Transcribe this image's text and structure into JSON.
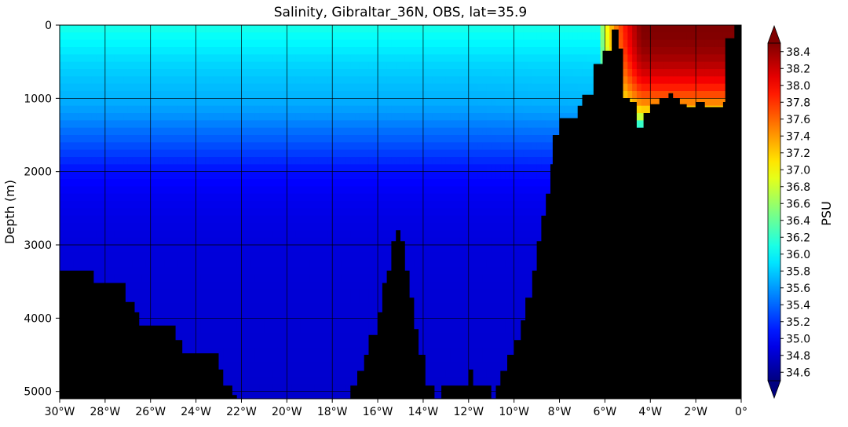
{
  "chart_data": {
    "type": "heatmap",
    "title": "Salinity, Gibraltar_36N, OBS, lat=35.9",
    "ylabel": "Depth (m)",
    "xlabel": "",
    "colorbar_label": "PSU",
    "xlim": [
      -30,
      0
    ],
    "ylim": [
      5100,
      0
    ],
    "y_inverted": true,
    "grid": true,
    "x_ticks": [
      {
        "value": -30,
        "label": "30°W"
      },
      {
        "value": -28,
        "label": "28°W"
      },
      {
        "value": -26,
        "label": "26°W"
      },
      {
        "value": -24,
        "label": "24°W"
      },
      {
        "value": -22,
        "label": "22°W"
      },
      {
        "value": -20,
        "label": "20°W"
      },
      {
        "value": -18,
        "label": "18°W"
      },
      {
        "value": -16,
        "label": "16°W"
      },
      {
        "value": -14,
        "label": "14°W"
      },
      {
        "value": -12,
        "label": "12°W"
      },
      {
        "value": -10,
        "label": "10°W"
      },
      {
        "value": -8,
        "label": "8°W"
      },
      {
        "value": -6,
        "label": "6°W"
      },
      {
        "value": -4,
        "label": "4°W"
      },
      {
        "value": -2,
        "label": "2°W"
      },
      {
        "value": 0,
        "label": "0°"
      }
    ],
    "y_ticks": [
      {
        "value": 0,
        "label": "0"
      },
      {
        "value": 1000,
        "label": "1000"
      },
      {
        "value": 2000,
        "label": "2000"
      },
      {
        "value": 3000,
        "label": "3000"
      },
      {
        "value": 4000,
        "label": "4000"
      },
      {
        "value": 5000,
        "label": "5000"
      }
    ],
    "colorbar": {
      "min": 34.5,
      "max": 38.5,
      "extend": "both",
      "ticks": [
        34.6,
        34.8,
        35.0,
        35.2,
        35.4,
        35.6,
        35.8,
        36.0,
        36.2,
        36.4,
        36.6,
        36.8,
        37.0,
        37.2,
        37.4,
        37.6,
        37.8,
        38.0,
        38.2,
        38.4
      ],
      "tick_labels": [
        "34.6",
        "34.8",
        "35.0",
        "35.2",
        "35.4",
        "35.6",
        "35.8",
        "36.0",
        "36.2",
        "36.4",
        "36.6",
        "36.8",
        "37.0",
        "37.2",
        "37.4",
        "37.6",
        "37.8",
        "38.0",
        "38.2",
        "38.4"
      ],
      "colormap": "jet"
    },
    "salinity_profile_by_depth": {
      "depth": [
        0,
        200,
        500,
        800,
        1000,
        1200,
        1500,
        1800,
        2000,
        2300,
        2600,
        3000,
        3500,
        4000,
        4500,
        5100
      ],
      "salinity": [
        36.1,
        36.0,
        35.85,
        35.75,
        35.7,
        35.6,
        35.4,
        35.2,
        35.05,
        34.95,
        34.9,
        34.86,
        34.84,
        34.83,
        34.82,
        34.8
      ]
    },
    "mediterranean_outflow": {
      "lon_range": [
        -6.2,
        0
      ],
      "depth_range": [
        0,
        1400
      ],
      "max_salinity": 38.5
    },
    "bathymetry": {
      "lon": [
        -30,
        -29.2,
        -28.5,
        -27.3,
        -27.1,
        -26.7,
        -26.5,
        -25.0,
        -24.9,
        -24.6,
        -24.4,
        -23.0,
        -22.8,
        -22.4,
        -22.2,
        -17.6,
        -17.2,
        -16.9,
        -16.6,
        -16.4,
        -16.0,
        -15.8,
        -15.6,
        -15.4,
        -15.2,
        -15.0,
        -14.8,
        -14.6,
        -14.4,
        -14.2,
        -13.9,
        -13.5,
        -13.2,
        -12.8,
        -12.0,
        -11.8,
        -11.6,
        -11.0,
        -10.8,
        -10.6,
        -10.3,
        -10.0,
        -9.7,
        -9.5,
        -9.2,
        -9.0,
        -8.8,
        -8.6,
        -8.4,
        -8.3,
        -8.0,
        -7.8,
        -7.6,
        -7.2,
        -7.0,
        -6.5,
        -6.1,
        -5.7,
        -5.4,
        -5.2,
        -4.9,
        -4.6,
        -4.3,
        -4.0,
        -3.6,
        -3.2,
        -3.0,
        -2.7,
        -2.4,
        -2.0,
        -1.6,
        -0.8,
        -0.7,
        -0.4,
        -0.3,
        0.0
      ],
      "depth": [
        3350,
        3350,
        3520,
        3520,
        3780,
        3920,
        4100,
        4100,
        4300,
        4480,
        4480,
        4700,
        4920,
        5050,
        5100,
        5100,
        4920,
        4720,
        4500,
        4230,
        3920,
        3520,
        3350,
        2950,
        2800,
        2950,
        3350,
        3720,
        4150,
        4500,
        4920,
        5100,
        4920,
        4920,
        4700,
        4920,
        4920,
        5100,
        4920,
        4720,
        4500,
        4300,
        4030,
        3720,
        3350,
        2950,
        2600,
        2300,
        1900,
        1500,
        1270,
        1270,
        1270,
        1100,
        950,
        530,
        350,
        60,
        320,
        1000,
        1050,
        1400,
        1200,
        1080,
        1000,
        930,
        1000,
        1080,
        1120,
        1050,
        1120,
        1050,
        180,
        180,
        0,
        0
      ]
    }
  }
}
